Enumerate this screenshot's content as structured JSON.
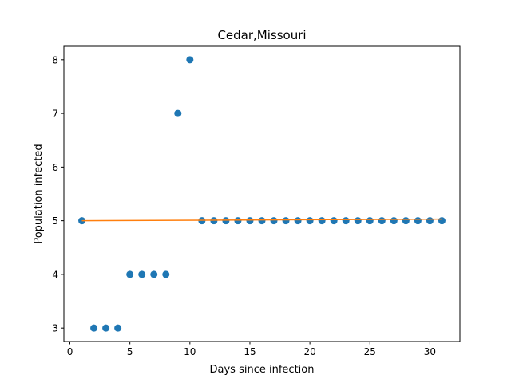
{
  "chart_data": {
    "type": "scatter",
    "title": "Cedar,Missouri",
    "xlabel": "Days since infection",
    "ylabel": "Population infected",
    "xlim": [
      -0.5,
      32.5
    ],
    "ylim": [
      2.75,
      8.25
    ],
    "xticks": [
      0,
      5,
      10,
      15,
      20,
      25,
      30
    ],
    "yticks": [
      3,
      4,
      5,
      6,
      7,
      8
    ],
    "grid": false,
    "series": [
      {
        "kind": "scatter",
        "color": "#1f77b4",
        "x": [
          1,
          2,
          3,
          4,
          5,
          6,
          7,
          8,
          9,
          10,
          11,
          12,
          13,
          14,
          15,
          16,
          17,
          18,
          19,
          20,
          21,
          22,
          23,
          24,
          25,
          26,
          27,
          28,
          29,
          30,
          31
        ],
        "y": [
          5,
          3,
          3,
          3,
          4,
          4,
          4,
          4,
          7,
          8,
          5,
          5,
          5,
          5,
          5,
          5,
          5,
          5,
          5,
          5,
          5,
          5,
          5,
          5,
          5,
          5,
          5,
          5,
          5,
          5,
          5
        ]
      },
      {
        "kind": "line",
        "color": "#ff7f0e",
        "x": [
          1,
          31
        ],
        "y": [
          5.0,
          5.03
        ]
      }
    ]
  }
}
